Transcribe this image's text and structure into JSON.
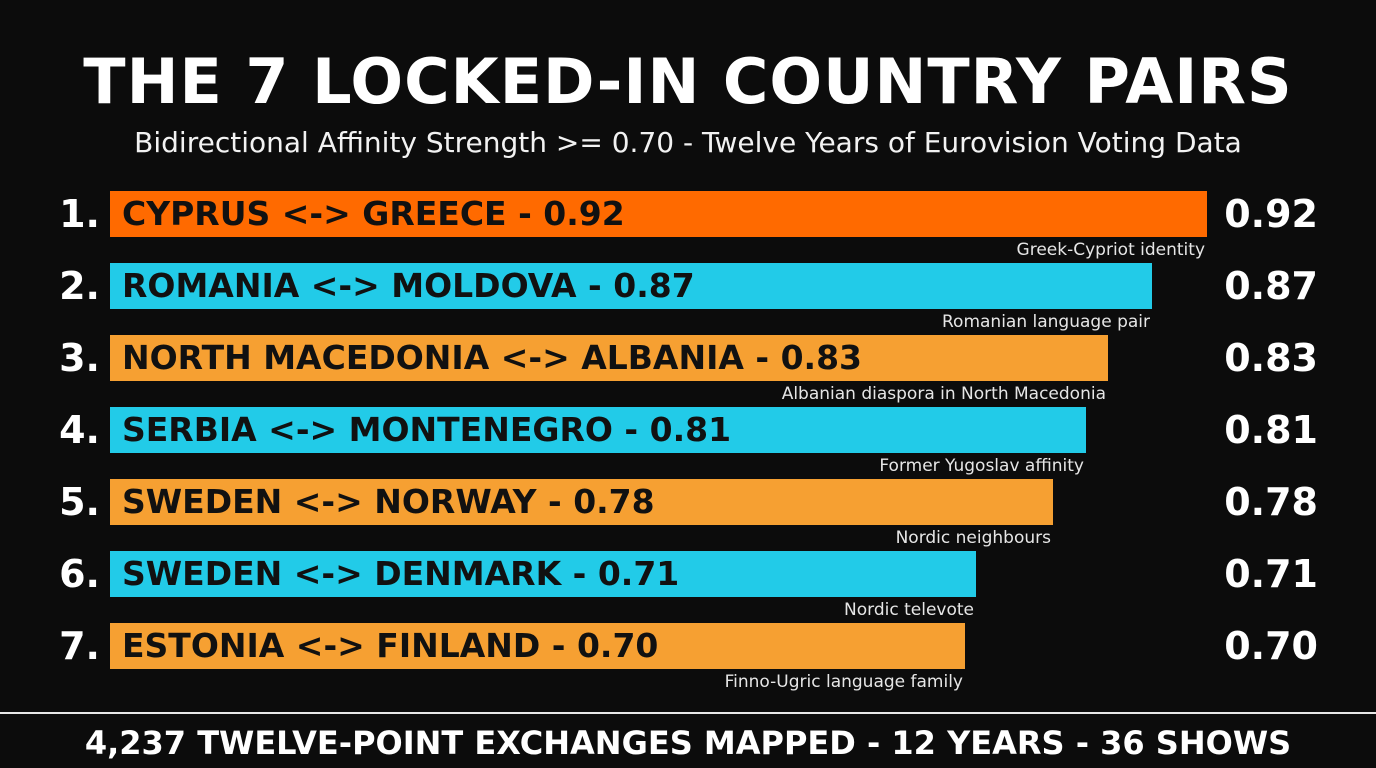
{
  "header": {
    "title": "THE 7 LOCKED-IN COUNTRY PAIRS",
    "subtitle": "Bidirectional Affinity Strength >= 0.70 - Twelve Years of Eurovision Voting Data"
  },
  "footer": {
    "text": "4,237 TWELVE-POINT EXCHANGES MAPPED - 12 YEARS - 36 SHOWS"
  },
  "colors": {
    "top": "#ff6a00",
    "cyan": "#22cbe8",
    "amber": "#f6a032",
    "background": "#0c0c0c"
  },
  "chart_data": {
    "type": "bar",
    "orientation": "horizontal",
    "categories": [
      "CYPRUS <-> GREECE",
      "ROMANIA <-> MOLDOVA",
      "NORTH MACEDONIA <-> ALBANIA",
      "SERBIA <-> MONTENEGRO",
      "SWEDEN <-> NORWAY",
      "SWEDEN <-> DENMARK",
      "ESTONIA <-> FINLAND"
    ],
    "values": [
      0.92,
      0.87,
      0.83,
      0.81,
      0.78,
      0.71,
      0.7
    ],
    "value_labels": [
      "0.92",
      "0.87",
      "0.83",
      "0.81",
      "0.78",
      "0.71",
      "0.70"
    ],
    "ranks": [
      "1.",
      "2.",
      "3.",
      "4.",
      "5.",
      "6.",
      "7."
    ],
    "bar_labels": [
      "CYPRUS <-> GREECE - 0.92",
      "ROMANIA <-> MOLDOVA - 0.87",
      "NORTH MACEDONIA <-> ALBANIA - 0.83",
      "SERBIA <-> MONTENEGRO - 0.81",
      "SWEDEN <-> NORWAY - 0.78",
      "SWEDEN <-> DENMARK - 0.71",
      "ESTONIA <-> FINLAND - 0.70"
    ],
    "annotations": [
      "Greek-Cypriot identity",
      "Romanian language pair",
      "Albanian diaspora in North Macedonia",
      "Former Yugoslav affinity",
      "Nordic neighbours",
      "Nordic televote",
      "Finno-Ugric language family"
    ],
    "bar_colors": [
      "#ff6a00",
      "#22cbe8",
      "#f6a032",
      "#22cbe8",
      "#f6a032",
      "#22cbe8",
      "#f6a032"
    ],
    "title": "THE 7 LOCKED-IN COUNTRY PAIRS",
    "xlabel": "",
    "ylabel": "",
    "grid": false
  }
}
